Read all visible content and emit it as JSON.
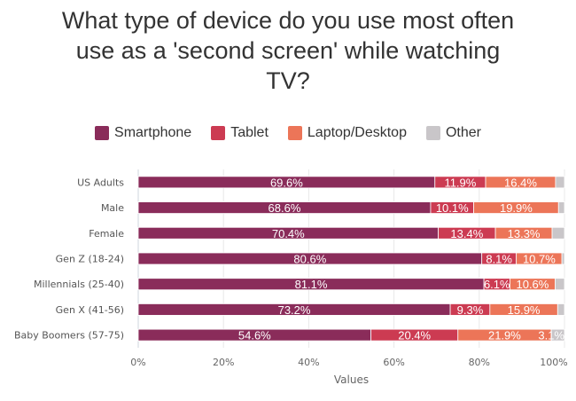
{
  "chart_data": {
    "type": "bar",
    "orientation": "horizontal",
    "stacked": true,
    "title_lines": [
      "What type of device do you use most often",
      "use as a 'second screen' while watching",
      "TV?"
    ],
    "xlabel": "Values",
    "ylabel": "",
    "xlim": [
      0,
      100
    ],
    "x_ticks": [
      "0%",
      "20%",
      "40%",
      "60%",
      "80%",
      "100%"
    ],
    "grid": true,
    "legend_position": "top",
    "categories": [
      "US Adults",
      "Male",
      "Female",
      "Gen Z (18-24)",
      "Millennials (25-40)",
      "Gen X (41-56)",
      "Baby Boomers (57-75)"
    ],
    "series": [
      {
        "name": "Smartphone",
        "color": "#8a2c5a",
        "values": [
          69.6,
          68.6,
          70.4,
          80.6,
          81.1,
          73.2,
          54.6
        ],
        "labels": [
          "69.6%",
          "68.6%",
          "70.4%",
          "80.6%",
          "81.1%",
          "73.2%",
          "54.6%"
        ]
      },
      {
        "name": "Tablet",
        "color": "#cc3b52",
        "values": [
          11.9,
          10.1,
          13.4,
          8.1,
          6.1,
          9.3,
          20.4
        ],
        "labels": [
          "11.9%",
          "10.1%",
          "13.4%",
          "8.1%",
          "6.1%",
          "9.3%",
          "20.4%"
        ]
      },
      {
        "name": "Laptop/Desktop",
        "color": "#ec7558",
        "values": [
          16.4,
          19.9,
          13.3,
          10.7,
          10.6,
          15.9,
          21.9
        ],
        "labels": [
          "16.4%",
          "19.9%",
          "13.3%",
          "10.7%",
          "10.6%",
          "15.9%",
          "21.9%"
        ]
      },
      {
        "name": "Other",
        "color": "#c9c6c9",
        "values": [
          2.1,
          1.4,
          2.9,
          0.6,
          2.2,
          1.6,
          3.1
        ],
        "labels": [
          "",
          "",
          "",
          "",
          "",
          "",
          "3.1%"
        ]
      }
    ]
  }
}
